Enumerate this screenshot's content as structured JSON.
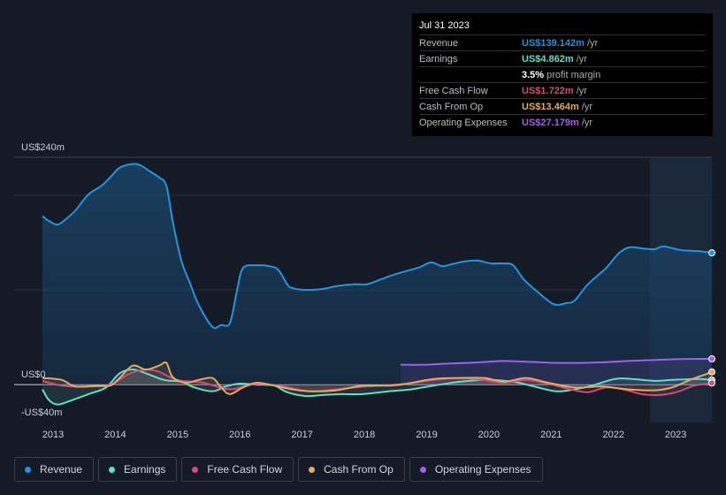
{
  "tooltip": {
    "date": "Jul 31 2023",
    "rows": [
      {
        "label": "Revenue",
        "value": "US$139.142m",
        "unit": "/yr"
      },
      {
        "label": "Earnings",
        "value": "US$4.862m",
        "unit": "/yr"
      },
      {
        "label": "Free Cash Flow",
        "value": "US$1.722m",
        "unit": "/yr"
      },
      {
        "label": "Cash From Op",
        "value": "US$13.464m",
        "unit": "/yr"
      },
      {
        "label": "Operating Expenses",
        "value": "US$27.179m",
        "unit": "/yr"
      }
    ],
    "margin": {
      "value": "3.5%",
      "text": "profit margin"
    }
  },
  "chart_data": {
    "type": "line",
    "xlim": [
      2012.375,
      2023.58
    ],
    "xticks": [
      2013,
      2014,
      2015,
      2016,
      2017,
      2018,
      2019,
      2020,
      2021,
      2022,
      2023
    ],
    "ylim": [
      -40,
      240
    ],
    "yticks": [
      {
        "value": -40,
        "label": "-US$40m"
      },
      {
        "value": 0,
        "label": "US$0"
      },
      {
        "value": 240,
        "label": "US$240m"
      }
    ],
    "ygrid": [
      100,
      200
    ],
    "series": [
      {
        "name": "Revenue",
        "color": "#2394df",
        "x": [
          2012.83,
          2012.93,
          2013.07,
          2013.21,
          2013.36,
          2013.57,
          2013.78,
          2013.92,
          2014.07,
          2014.28,
          2014.42,
          2014.56,
          2014.7,
          2014.82,
          2014.92,
          2015.06,
          2015.2,
          2015.34,
          2015.56,
          2015.7,
          2015.84,
          2015.95,
          2016.05,
          2016.27,
          2016.48,
          2016.62,
          2016.76,
          2016.84,
          2017.05,
          2017.33,
          2017.55,
          2017.83,
          2018.04,
          2018.26,
          2018.47,
          2018.68,
          2018.89,
          2019.07,
          2019.25,
          2019.39,
          2019.6,
          2019.82,
          2020.03,
          2020.24,
          2020.39,
          2020.56,
          2020.78,
          2021.04,
          2021.24,
          2021.38,
          2021.59,
          2021.88,
          2022.09,
          2022.26,
          2022.45,
          2022.66,
          2022.8,
          2023.09,
          2023.37,
          2023.58
        ],
        "values": [
          178,
          173,
          169,
          175,
          184,
          201,
          210,
          219,
          229,
          233,
          231,
          225,
          219,
          210,
          173,
          131,
          107,
          84,
          61,
          63,
          65,
          98,
          123,
          126,
          125,
          121,
          106,
          102,
          100,
          101,
          104,
          106,
          106,
          111,
          116,
          120,
          124,
          129,
          125,
          127,
          130,
          131,
          128,
          128,
          126,
          111,
          98,
          85,
          86,
          89,
          106,
          123,
          139,
          145,
          144,
          143,
          146,
          142,
          141,
          139.142
        ]
      },
      {
        "name": "Earnings",
        "color": "#5ee0c8",
        "x": [
          2012.83,
          2012.93,
          2013.07,
          2013.28,
          2013.57,
          2013.85,
          2014.07,
          2014.28,
          2014.49,
          2014.78,
          2015.06,
          2015.27,
          2015.56,
          2015.77,
          2015.98,
          2016.27,
          2016.55,
          2016.76,
          2017.05,
          2017.33,
          2017.62,
          2017.97,
          2018.4,
          2018.75,
          2019.11,
          2019.53,
          2019.96,
          2020.39,
          2020.67,
          2021.07,
          2021.38,
          2021.66,
          2022.02,
          2022.3,
          2022.66,
          2022.94,
          2023.37,
          2023.58
        ],
        "values": [
          -5,
          -16,
          -21,
          -17,
          -10,
          -3,
          12,
          16,
          12,
          5,
          3,
          -3,
          -7,
          -2,
          1,
          0,
          -1,
          -8,
          -12,
          -11,
          -10,
          -10,
          -7,
          -5,
          -1,
          3,
          5,
          3,
          -1,
          -7,
          -5,
          -1,
          6,
          6,
          4,
          5,
          6,
          4.862
        ]
      },
      {
        "name": "Free Cash Flow",
        "color": "#d9477f",
        "x": [
          2012.83,
          2013.14,
          2013.57,
          2013.92,
          2014.28,
          2014.63,
          2014.99,
          2015.41,
          2015.84,
          2016.27,
          2016.69,
          2017.12,
          2017.55,
          2017.83,
          2018.26,
          2018.68,
          2019.11,
          2019.53,
          2019.89,
          2020.24,
          2020.6,
          2020.95,
          2021.31,
          2021.59,
          2021.88,
          2022.16,
          2022.45,
          2022.73,
          2023.01,
          2023.3,
          2023.58
        ],
        "values": [
          4,
          -1,
          -2,
          0,
          13,
          15,
          5,
          2,
          -5,
          1,
          -2,
          -7,
          -5,
          -3,
          -1,
          1,
          5,
          7,
          5,
          2,
          5,
          1,
          -5,
          -8,
          -3,
          -5,
          -10,
          -11,
          -8,
          -1,
          1.722
        ]
      },
      {
        "name": "Cash From Op",
        "color": "#e8a95c",
        "x": [
          2012.83,
          2013.14,
          2013.36,
          2013.71,
          2013.92,
          2014.07,
          2014.28,
          2014.49,
          2014.7,
          2014.82,
          2014.92,
          2015.13,
          2015.34,
          2015.56,
          2015.7,
          2015.84,
          2016.05,
          2016.27,
          2016.55,
          2016.84,
          2017.12,
          2017.55,
          2017.97,
          2018.4,
          2018.68,
          2019.11,
          2019.53,
          2019.93,
          2020.24,
          2020.6,
          2020.95,
          2021.38,
          2021.81,
          2022.23,
          2022.66,
          2022.94,
          2023.23,
          2023.44,
          2023.58
        ],
        "values": [
          7,
          5,
          -2,
          -1,
          -1,
          7,
          20,
          16,
          20,
          23,
          8,
          2,
          5,
          7,
          -3,
          -10,
          -3,
          2,
          -1,
          -5,
          -7,
          -6,
          -1,
          -1,
          1,
          6,
          7,
          7,
          3,
          7,
          2,
          -3,
          -2,
          -5,
          -6,
          -3,
          5,
          10,
          13.464
        ]
      },
      {
        "name": "Operating Expenses",
        "color": "#a15ff0",
        "x": [
          2018.58,
          2018.97,
          2019.25,
          2019.68,
          2019.96,
          2020.24,
          2020.67,
          2021.1,
          2021.52,
          2021.95,
          2022.23,
          2022.66,
          2023.09,
          2023.58
        ],
        "values": [
          21,
          21,
          22,
          23,
          24,
          25,
          24,
          23,
          23,
          24,
          25,
          26,
          27,
          27.179
        ]
      }
    ]
  }
}
